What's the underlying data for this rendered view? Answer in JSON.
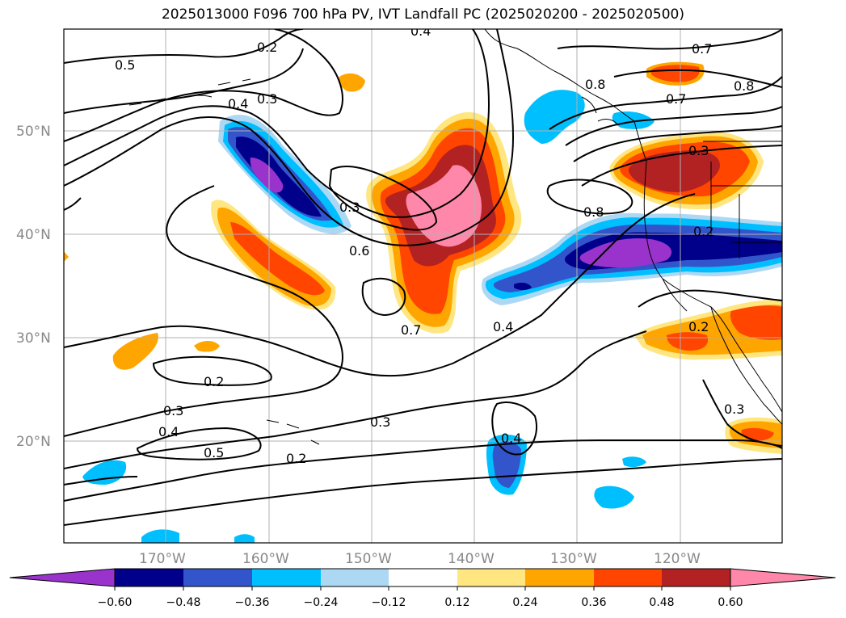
{
  "title": "2025013000 F096 700 hPa PV, IVT Landfall PC (2025020200 - 2025020500)",
  "latitude_labels": [
    "50°N",
    "40°N",
    "30°N",
    "20°N"
  ],
  "longitude_labels": [
    "170°W",
    "160°W",
    "150°W",
    "140°W",
    "130°W",
    "120°W"
  ],
  "contour_labels": [
    "0.4",
    "0.2",
    "0.5",
    "0.4",
    "0.3",
    "0.3",
    "0.6",
    "0.7",
    "0.4",
    "0.8",
    "0.8",
    "0.7",
    "0.7",
    "0.8",
    "0.3",
    "0.2",
    "0.2",
    "0.3",
    "0.4",
    "0.5",
    "0.3",
    "0.2",
    "0.4",
    "0.3",
    "0.2"
  ],
  "colorbar": {
    "tick_labels": [
      "−0.60",
      "−0.48",
      "−0.36",
      "−0.24",
      "−0.12",
      "0.12",
      "0.24",
      "0.36",
      "0.48",
      "0.60"
    ],
    "colors": [
      "#9933cc",
      "#00008b",
      "#3355cc",
      "#00bfff",
      "#add8f4",
      "#ffffff",
      "#ffe680",
      "#ffa500",
      "#ff4500",
      "#b22222",
      "#ff88aa"
    ]
  },
  "colors": {
    "grid": "#b0b0b0",
    "coast": "#000000",
    "contour": "#000000",
    "label_gray": "#888888"
  }
}
